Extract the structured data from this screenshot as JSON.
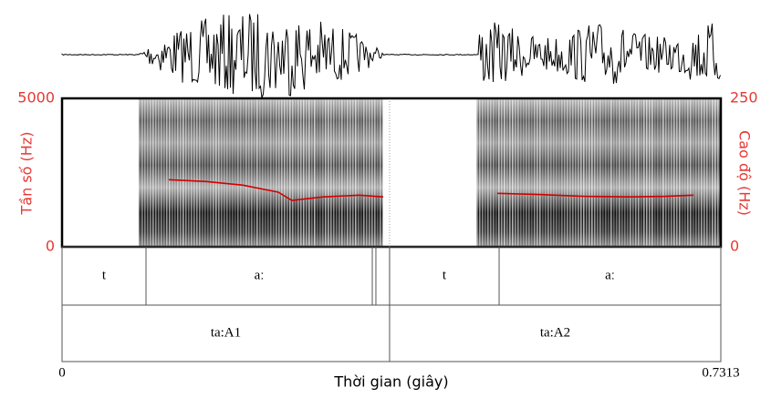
{
  "chart_data": {
    "type": "praat",
    "xlabel": "Thời gian (giây)",
    "ylabel": "Tần số (Hz)",
    "y2label": "Cao độ (Hz)",
    "xlim": [
      0,
      0.7313
    ],
    "xticks": [
      0,
      0.7313
    ],
    "ylim": [
      0,
      5000
    ],
    "yticks": [
      0,
      5000
    ],
    "y2lim": [
      0,
      250
    ],
    "y2ticks": [
      0,
      250
    ],
    "axis_color": "#e53935",
    "series": [
      {
        "color": "#d40000",
        "axis": "y2",
        "x": [
          0.1185,
          0.16,
          0.2,
          0.24,
          0.255,
          0.29,
          0.33,
          0.3565
        ],
        "values": [
          113,
          110,
          104,
          92,
          78,
          84,
          87,
          84
        ]
      },
      {
        "color": "#d40000",
        "axis": "y2",
        "x": [
          0.483,
          0.53,
          0.58,
          0.63,
          0.67,
          0.701
        ],
        "values": [
          90,
          88,
          85,
          84,
          85,
          87
        ]
      }
    ],
    "tiers": [
      {
        "intervals": [
          {
            "label": "t",
            "start": 0,
            "end": 0.0932
          },
          {
            "label": "aː",
            "start": 0.0932,
            "end": 0.3444
          },
          {
            "label": null,
            "start": 0.3444,
            "end": 0.3484
          },
          {
            "label": null,
            "start": 0.3484,
            "end": 0.3636
          },
          {
            "label": "t",
            "start": 0.3636,
            "end": 0.4852
          },
          {
            "label": "aː",
            "start": 0.4852,
            "end": 0.7313
          }
        ]
      },
      {
        "intervals": [
          {
            "label": "ta:A1",
            "start": 0,
            "end": 0.3636
          },
          {
            "label": "ta:A2",
            "start": 0.3636,
            "end": 0.7313
          }
        ]
      }
    ]
  }
}
